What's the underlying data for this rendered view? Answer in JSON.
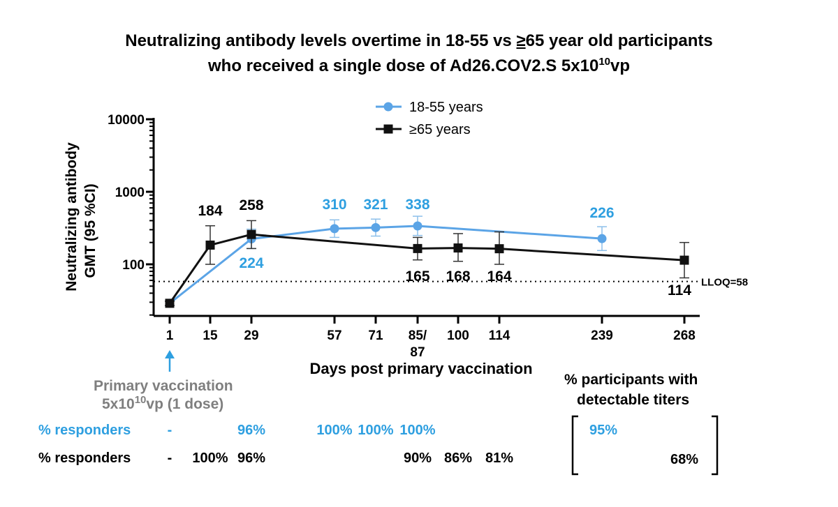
{
  "title": {
    "line1_a": "Neutralizing antibody levels overtime in 18-55 vs ",
    "line1_u": "≥",
    "line1_b": "65 year old participants",
    "line2_a": "who received a single dose of Ad26.COV2.S 5x10",
    "line2_sup": "10",
    "line2_b": "vp"
  },
  "colors": {
    "young": "#5ba4e6",
    "old": "#111111",
    "blue_text": "#2e9fe0",
    "grey_text": "#7f7f7f"
  },
  "chart_data": {
    "type": "line",
    "yscale": "log",
    "ylim": [
      20,
      10000
    ],
    "yticks": [
      100,
      1000,
      10000
    ],
    "ytick_labels": [
      "100",
      "1000",
      "10000"
    ],
    "ylabel_line1": "Neutralizing antibody",
    "ylabel_line2": "GMT (95 %CI)",
    "xlabel": "Days post primary vaccination",
    "xticks": [
      {
        "label": "1",
        "label2": ""
      },
      {
        "label": "15",
        "label2": ""
      },
      {
        "label": "29",
        "label2": ""
      },
      {
        "label": "57",
        "label2": ""
      },
      {
        "label": "71",
        "label2": ""
      },
      {
        "label": "85/",
        "label2": "87"
      },
      {
        "label": "100",
        "label2": ""
      },
      {
        "label": "114",
        "label2": ""
      },
      {
        "label": "239",
        "label2": ""
      },
      {
        "label": "268",
        "label2": ""
      }
    ],
    "lloq": {
      "value": 58,
      "label": "LLOQ=58"
    },
    "series": [
      {
        "name": "18-55 years",
        "marker": "circle",
        "points": [
          {
            "tick": 0,
            "y": 29,
            "lo": 27,
            "hi": 31,
            "label": ""
          },
          {
            "tick": 2,
            "y": 224,
            "lo": 165,
            "hi": 305,
            "label": "224"
          },
          {
            "tick": 3,
            "y": 310,
            "lo": 235,
            "hi": 410,
            "label": "310"
          },
          {
            "tick": 4,
            "y": 321,
            "lo": 245,
            "hi": 420,
            "label": "321"
          },
          {
            "tick": 5,
            "y": 338,
            "lo": 250,
            "hi": 460,
            "label": "338"
          },
          {
            "tick": 8,
            "y": 226,
            "lo": 155,
            "hi": 330,
            "label": "226"
          }
        ]
      },
      {
        "name": "≥65 years",
        "marker": "square",
        "points": [
          {
            "tick": 0,
            "y": 29,
            "lo": 27,
            "hi": 31,
            "label": ""
          },
          {
            "tick": 1,
            "y": 184,
            "lo": 100,
            "hi": 340,
            "label": "184"
          },
          {
            "tick": 2,
            "y": 258,
            "lo": 165,
            "hi": 400,
            "label": "258"
          },
          {
            "tick": 5,
            "y": 165,
            "lo": 115,
            "hi": 235,
            "label": "165"
          },
          {
            "tick": 6,
            "y": 168,
            "lo": 110,
            "hi": 265,
            "label": "168"
          },
          {
            "tick": 7,
            "y": 164,
            "lo": 100,
            "hi": 280,
            "label": "164"
          },
          {
            "tick": 9,
            "y": 114,
            "lo": 65,
            "hi": 200,
            "label": "114"
          }
        ]
      }
    ]
  },
  "annotations": {
    "primary_vaccination_line1": "Primary  vaccination",
    "primary_vaccination_line2": "5x10",
    "primary_vaccination_sup": "10",
    "primary_vaccination_line2b": "vp (1 dose)",
    "detectable_line1": "% participants with",
    "detectable_line2": "detectable titers"
  },
  "responders": {
    "young": {
      "label": "% responders",
      "values": [
        {
          "tick": 0,
          "text": "-"
        },
        {
          "tick": 2,
          "text": "96%"
        },
        {
          "tick": 3,
          "text": "100%"
        },
        {
          "tick": 4,
          "text": "100%"
        },
        {
          "tick": 5,
          "text": "100%"
        }
      ],
      "detectable": "95%"
    },
    "old": {
      "label": "% responders",
      "values": [
        {
          "tick": 0,
          "text": "-"
        },
        {
          "tick": 1,
          "text": "100%"
        },
        {
          "tick": 2,
          "text": "96%"
        },
        {
          "tick": 5,
          "text": "90%"
        },
        {
          "tick": 6,
          "text": "86%"
        },
        {
          "tick": 7,
          "text": "81%"
        }
      ],
      "detectable": "68%"
    }
  }
}
